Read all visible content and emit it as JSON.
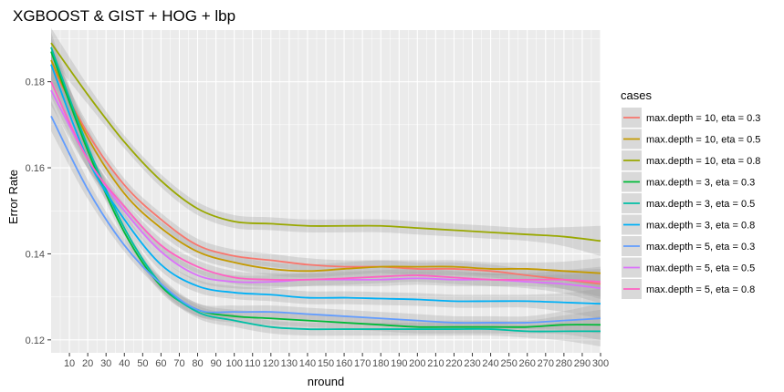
{
  "chart_data": {
    "type": "line",
    "title": "XGBOOST & GIST + HOG + lbp",
    "xlabel": "nround",
    "ylabel": "Error Rate",
    "xlim": [
      0,
      300
    ],
    "ylim": [
      0.117,
      0.192
    ],
    "x_ticks": [
      10,
      20,
      30,
      40,
      50,
      60,
      70,
      80,
      90,
      100,
      110,
      120,
      130,
      140,
      150,
      160,
      170,
      180,
      190,
      200,
      210,
      220,
      230,
      240,
      250,
      260,
      270,
      280,
      290,
      300
    ],
    "x_tick_labels": [
      "10",
      "20",
      "30",
      "40",
      "50",
      "60",
      "70",
      "80",
      "90",
      "100",
      "110",
      "120",
      "130",
      "140",
      "150",
      "160",
      "170",
      "180",
      "190",
      "200",
      "210",
      "220",
      "230",
      "240",
      "250",
      "260",
      "270",
      "280",
      "290",
      "300"
    ],
    "y_ticks": [
      0.12,
      0.14,
      0.16,
      0.18
    ],
    "y_tick_labels": [
      "0.12",
      "0.14",
      "0.16",
      "0.18"
    ],
    "grid": true,
    "legend_title": "cases",
    "legend_position": "right",
    "x": [
      0,
      20,
      40,
      60,
      80,
      100,
      120,
      140,
      160,
      180,
      200,
      220,
      240,
      260,
      280,
      300
    ],
    "series": [
      {
        "name": "max.depth = 10, eta = 0.3",
        "color": "#F8766D",
        "values": [
          0.184,
          0.168,
          0.156,
          0.148,
          0.142,
          0.1395,
          0.1385,
          0.1375,
          0.137,
          0.137,
          0.1365,
          0.1365,
          0.136,
          0.135,
          0.134,
          0.133
        ]
      },
      {
        "name": "max.depth = 10, eta = 0.5",
        "color": "#C49A00",
        "values": [
          0.185,
          0.167,
          0.154,
          0.146,
          0.1405,
          0.138,
          0.1365,
          0.136,
          0.1365,
          0.137,
          0.137,
          0.137,
          0.1365,
          0.1365,
          0.136,
          0.1355
        ]
      },
      {
        "name": "max.depth = 10, eta = 0.8",
        "color": "#99A800",
        "values": [
          0.189,
          0.177,
          0.166,
          0.157,
          0.1505,
          0.1475,
          0.147,
          0.1465,
          0.1465,
          0.1465,
          0.146,
          0.1455,
          0.145,
          0.1445,
          0.144,
          0.143
        ]
      },
      {
        "name": "max.depth = 3, eta = 0.3",
        "color": "#00BA38",
        "values": [
          0.187,
          0.164,
          0.145,
          0.1325,
          0.127,
          0.1255,
          0.125,
          0.1245,
          0.124,
          0.1235,
          0.123,
          0.123,
          0.123,
          0.123,
          0.1235,
          0.1235
        ]
      },
      {
        "name": "max.depth = 3, eta = 0.5",
        "color": "#00BFA5",
        "values": [
          0.188,
          0.165,
          0.146,
          0.133,
          0.1265,
          0.1245,
          0.123,
          0.1225,
          0.1225,
          0.1225,
          0.1225,
          0.1225,
          0.1225,
          0.122,
          0.122,
          0.122
        ]
      },
      {
        "name": "max.depth = 3, eta = 0.8",
        "color": "#00B0F6",
        "values": [
          0.184,
          0.162,
          0.148,
          0.1375,
          0.1325,
          0.131,
          0.1305,
          0.1298,
          0.1298,
          0.1296,
          0.1294,
          0.129,
          0.129,
          0.129,
          0.1287,
          0.1284
        ]
      },
      {
        "name": "max.depth = 5, eta = 0.3",
        "color": "#619CFF",
        "values": [
          0.172,
          0.155,
          0.142,
          0.133,
          0.127,
          0.1265,
          0.1265,
          0.126,
          0.1255,
          0.125,
          0.1245,
          0.124,
          0.124,
          0.124,
          0.1245,
          0.125
        ]
      },
      {
        "name": "max.depth = 5, eta = 0.5",
        "color": "#DB72FB",
        "values": [
          0.178,
          0.162,
          0.15,
          0.1405,
          0.135,
          0.1335,
          0.1335,
          0.134,
          0.134,
          0.134,
          0.1343,
          0.134,
          0.134,
          0.1335,
          0.133,
          0.132
        ]
      },
      {
        "name": "max.depth = 5, eta = 0.8",
        "color": "#FF61C3",
        "values": [
          0.18,
          0.162,
          0.151,
          0.142,
          0.137,
          0.1345,
          0.134,
          0.134,
          0.1343,
          0.1347,
          0.135,
          0.1345,
          0.134,
          0.134,
          0.134,
          0.1335
        ]
      }
    ]
  }
}
